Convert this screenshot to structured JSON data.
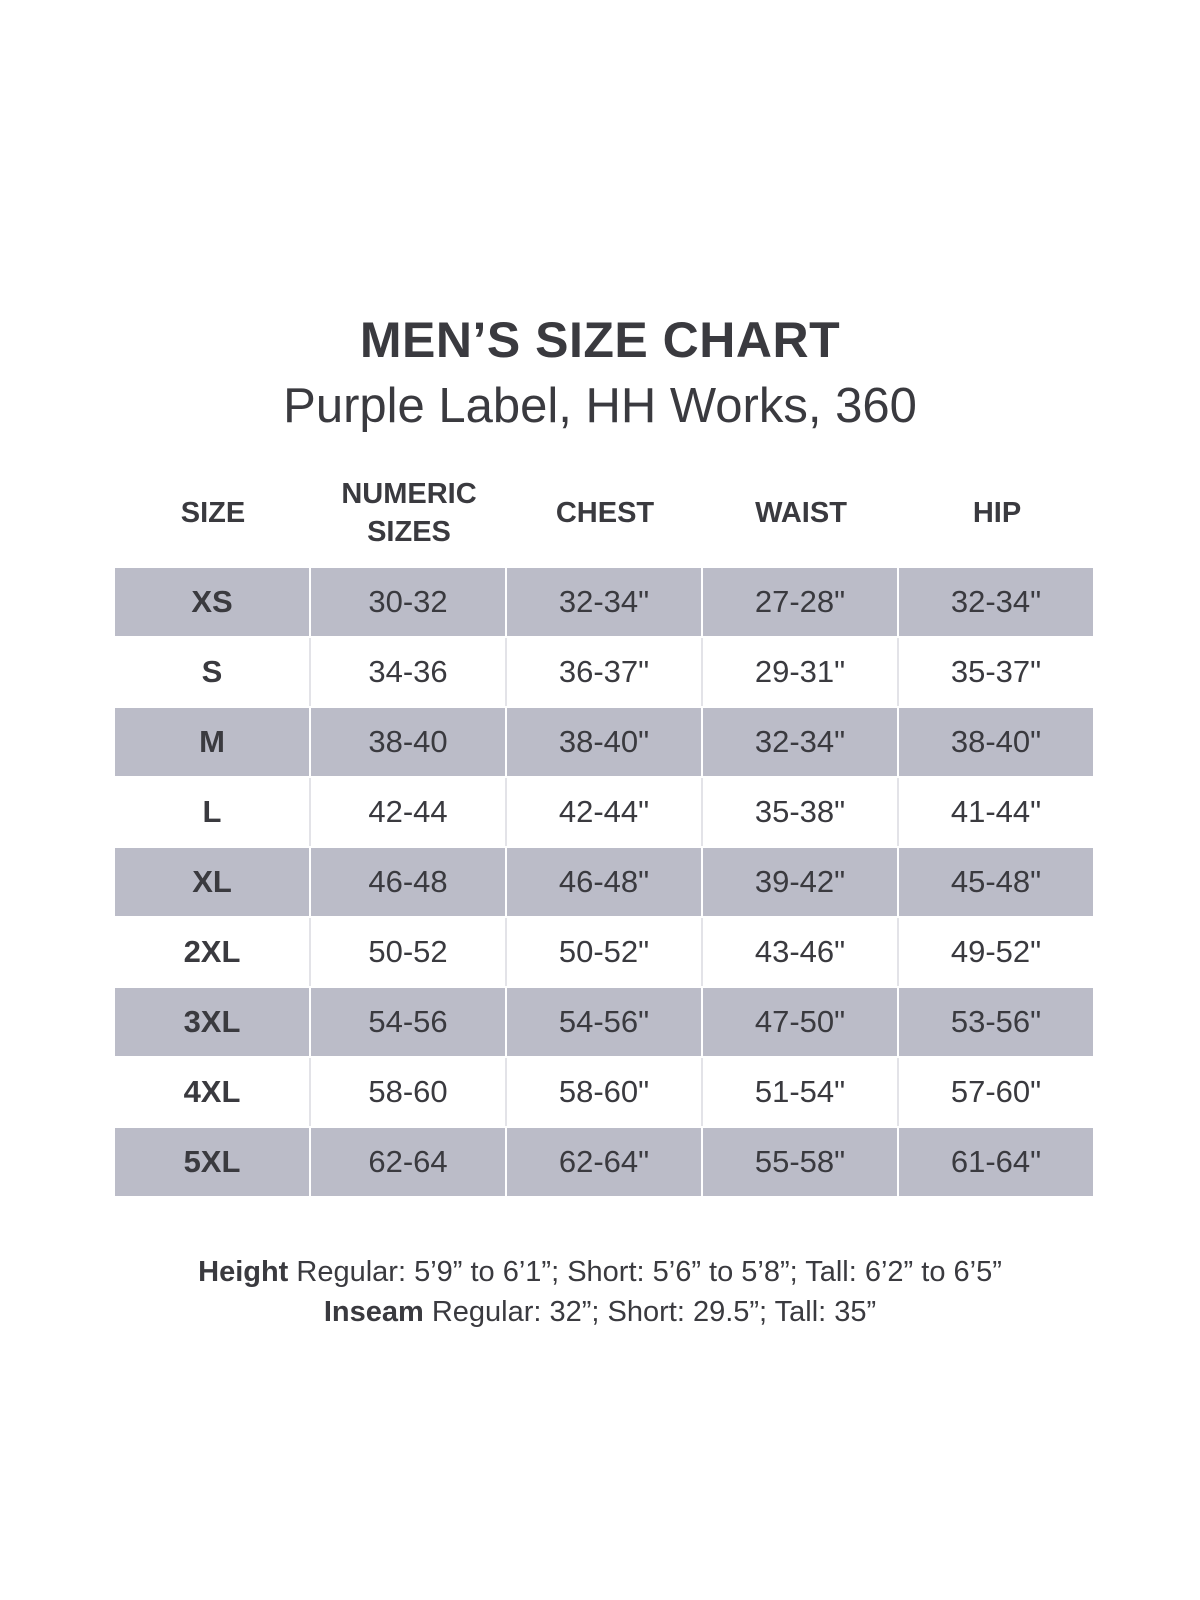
{
  "title": "MEN’S SIZE CHART",
  "subtitle": "Purple Label, HH Works, 360",
  "headers": [
    "SIZE",
    "NUMERIC\nSIZES",
    "CHEST",
    "WAIST",
    "HIP"
  ],
  "rows": [
    [
      "XS",
      "30-32",
      "32-34\"",
      "27-28\"",
      "32-34\""
    ],
    [
      "S",
      "34-36",
      "36-37\"",
      "29-31\"",
      "35-37\""
    ],
    [
      "M",
      "38-40",
      "38-40\"",
      "32-34\"",
      "38-40\""
    ],
    [
      "L",
      "42-44",
      "42-44\"",
      "35-38\"",
      "41-44\""
    ],
    [
      "XL",
      "46-48",
      "46-48\"",
      "39-42\"",
      "45-48\""
    ],
    [
      "2XL",
      "50-52",
      "50-52\"",
      "43-46\"",
      "49-52\""
    ],
    [
      "3XL",
      "54-56",
      "54-56\"",
      "47-50\"",
      "53-56\""
    ],
    [
      "4XL",
      "58-60",
      "58-60\"",
      "51-54\"",
      "57-60\""
    ],
    [
      "5XL",
      "62-64",
      "62-64\"",
      "55-58\"",
      "61-64\""
    ]
  ],
  "notes": {
    "height_label": "Height",
    "height_text": " Regular: 5’9” to 6’1”; Short: 5’6” to 5’8”; Tall: 6’2” to 6’5”",
    "inseam_label": "Inseam",
    "inseam_text": " Regular: 32”;  Short: 29.5”; Tall: 35”"
  },
  "colors": {
    "shaded_row": "#bbbcc8",
    "text": "#3a3a3f"
  }
}
